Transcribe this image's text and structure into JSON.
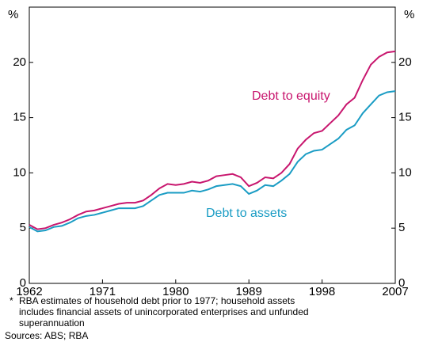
{
  "chart_data": {
    "type": "line",
    "y_unit_left": "%",
    "y_unit_right": "%",
    "x": [
      1962,
      1963,
      1964,
      1965,
      1966,
      1967,
      1968,
      1969,
      1970,
      1971,
      1972,
      1973,
      1974,
      1975,
      1976,
      1977,
      1978,
      1979,
      1980,
      1981,
      1982,
      1983,
      1984,
      1985,
      1986,
      1987,
      1988,
      1989,
      1990,
      1991,
      1992,
      1993,
      1994,
      1995,
      1996,
      1997,
      1998,
      1999,
      2000,
      2001,
      2002,
      2003,
      2004,
      2005,
      2006,
      2007
    ],
    "series": [
      {
        "name": "Debt to equity",
        "color": "#c8166e",
        "values": [
          5.3,
          4.9,
          5.0,
          5.3,
          5.5,
          5.8,
          6.2,
          6.5,
          6.6,
          6.8,
          7.0,
          7.2,
          7.3,
          7.3,
          7.5,
          8.0,
          8.6,
          9.0,
          8.9,
          9.0,
          9.2,
          9.1,
          9.3,
          9.7,
          9.8,
          9.9,
          9.6,
          8.8,
          9.1,
          9.6,
          9.5,
          10.0,
          10.8,
          12.2,
          13.0,
          13.6,
          13.8,
          14.5,
          15.2,
          16.2,
          16.8,
          18.4,
          19.8,
          20.5,
          20.9,
          21.0
        ]
      },
      {
        "name": "Debt to assets",
        "color": "#1a9cc4",
        "values": [
          5.1,
          4.7,
          4.8,
          5.1,
          5.2,
          5.5,
          5.9,
          6.1,
          6.2,
          6.4,
          6.6,
          6.8,
          6.8,
          6.8,
          7.0,
          7.5,
          8.0,
          8.2,
          8.2,
          8.2,
          8.4,
          8.3,
          8.5,
          8.8,
          8.9,
          9.0,
          8.8,
          8.1,
          8.4,
          8.9,
          8.8,
          9.3,
          9.9,
          11.0,
          11.7,
          12.0,
          12.1,
          12.6,
          13.1,
          13.9,
          14.3,
          15.4,
          16.2,
          17.0,
          17.3,
          17.4
        ]
      }
    ],
    "xlim": [
      1962,
      2007
    ],
    "xticks": [
      1962,
      1971,
      1980,
      1989,
      1998,
      2007
    ],
    "ylim": [
      0,
      25
    ],
    "yticks": [
      0,
      5,
      10,
      15,
      20
    ],
    "footnote": {
      "marker": "*",
      "lines": [
        "RBA estimates of household debt prior to 1977; household assets",
        "includes financial assets of unincorporated enterprises and unfunded",
        "superannuation"
      ]
    },
    "sources": "Sources: ABS; RBA"
  }
}
